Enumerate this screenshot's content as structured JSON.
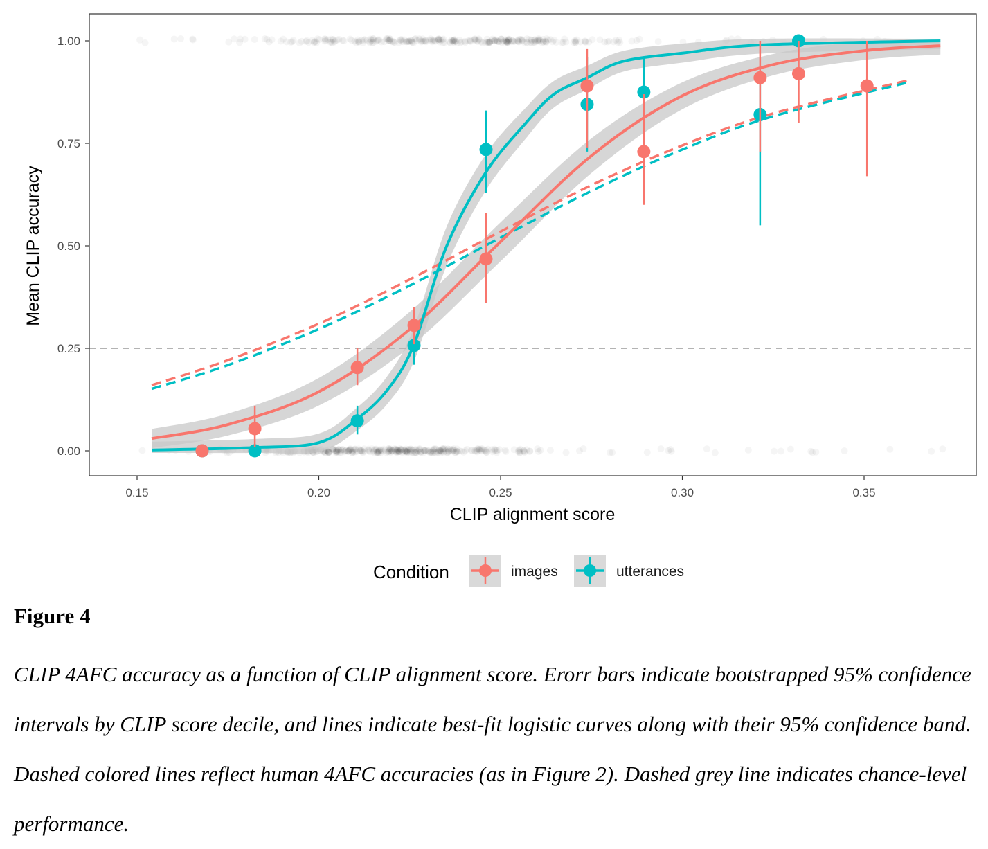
{
  "chart_data": {
    "type": "scatter",
    "xlabel": "CLIP alignment score",
    "ylabel": "Mean CLIP accuracy",
    "xlim": [
      0.137,
      0.381
    ],
    "ylim": [
      -0.06,
      1.07
    ],
    "xticks": [
      "0.15",
      "0.20",
      "0.25",
      "0.30",
      "0.35"
    ],
    "xtick_values": [
      0.15,
      0.2,
      0.25,
      0.3,
      0.35
    ],
    "yticks": [
      "0.00",
      "0.25",
      "0.50",
      "0.75",
      "1.00"
    ],
    "ytick_values": [
      0,
      0.25,
      0.5,
      0.75,
      1.0
    ],
    "grid": false,
    "legend": {
      "title": "Condition",
      "placement": "bottom"
    },
    "chance_line": {
      "y": 0.25,
      "color": "#b3b3b3",
      "style": "dashed"
    },
    "series": [
      {
        "name": "images",
        "color": "#F8766D",
        "points": [
          {
            "x": 0.1679,
            "y": 0.0,
            "lo": 0.0,
            "hi": 0.0
          },
          {
            "x": 0.1824,
            "y": 0.054,
            "lo": 0.01,
            "hi": 0.11
          },
          {
            "x": 0.2106,
            "y": 0.203,
            "lo": 0.16,
            "hi": 0.25
          },
          {
            "x": 0.2262,
            "y": 0.306,
            "lo": 0.26,
            "hi": 0.35
          },
          {
            "x": 0.246,
            "y": 0.468,
            "lo": 0.36,
            "hi": 0.58
          },
          {
            "x": 0.2738,
            "y": 0.89,
            "lo": 0.74,
            "hi": 0.98
          },
          {
            "x": 0.2894,
            "y": 0.73,
            "lo": 0.6,
            "hi": 0.87
          },
          {
            "x": 0.3214,
            "y": 0.91,
            "lo": 0.73,
            "hi": 1.0
          },
          {
            "x": 0.332,
            "y": 0.92,
            "lo": 0.8,
            "hi": 1.0
          },
          {
            "x": 0.3508,
            "y": 0.89,
            "lo": 0.67,
            "hi": 1.0
          }
        ],
        "fit_curve": {
          "x": [
            0.154,
            0.175,
            0.2,
            0.225,
            0.25,
            0.275,
            0.3,
            0.325,
            0.35,
            0.371
          ],
          "y": [
            0.03,
            0.064,
            0.144,
            0.296,
            0.51,
            0.72,
            0.866,
            0.942,
            0.976,
            0.988
          ]
        },
        "human_curve": {
          "x": [
            0.154,
            0.175,
            0.2,
            0.225,
            0.25,
            0.275,
            0.3,
            0.325,
            0.3628
          ],
          "y": [
            0.16,
            0.221,
            0.31,
            0.418,
            0.535,
            0.648,
            0.745,
            0.823,
            0.905
          ]
        }
      },
      {
        "name": "utterances",
        "color": "#00BFC4",
        "points": [
          {
            "x": 0.1679,
            "y": 0.0,
            "lo": 0.0,
            "hi": 0.0
          },
          {
            "x": 0.1824,
            "y": 0.0,
            "lo": 0.0,
            "hi": 0.0
          },
          {
            "x": 0.2106,
            "y": 0.073,
            "lo": 0.04,
            "hi": 0.11
          },
          {
            "x": 0.2262,
            "y": 0.257,
            "lo": 0.21,
            "hi": 0.3
          },
          {
            "x": 0.246,
            "y": 0.735,
            "lo": 0.63,
            "hi": 0.83
          },
          {
            "x": 0.2738,
            "y": 0.845,
            "lo": 0.73,
            "hi": 0.96
          },
          {
            "x": 0.2894,
            "y": 0.875,
            "lo": 0.78,
            "hi": 0.96
          },
          {
            "x": 0.3214,
            "y": 0.82,
            "lo": 0.55,
            "hi": 0.9
          },
          {
            "x": 0.332,
            "y": 1.0,
            "lo": 1.0,
            "hi": 1.0
          }
        ],
        "fit_curve": {
          "x": [
            0.154,
            0.1824,
            0.2,
            0.2106,
            0.219,
            0.2262,
            0.2352,
            0.246,
            0.257,
            0.2647,
            0.2738,
            0.2837,
            0.3,
            0.322,
            0.371
          ],
          "y": [
            0.002,
            0.008,
            0.02,
            0.078,
            0.15,
            0.26,
            0.5,
            0.68,
            0.8,
            0.87,
            0.91,
            0.95,
            0.97,
            0.99,
            1.0
          ]
        },
        "human_curve": {
          "x": [
            0.154,
            0.175,
            0.2,
            0.225,
            0.25,
            0.275,
            0.3,
            0.325,
            0.3628
          ],
          "y": [
            0.151,
            0.209,
            0.297,
            0.403,
            0.52,
            0.634,
            0.735,
            0.816,
            0.9
          ]
        }
      }
    ]
  },
  "figure": {
    "label": "Figure 4",
    "caption": "CLIP 4AFC accuracy as a function of CLIP alignment score. Erorr bars indicate bootstrapped 95% confidence intervals by CLIP score decile, and lines indicate best-fit logistic curves along with their 95% confidence band. Dashed colored lines reflect human 4AFC accuracies (as in Figure 2). Dashed grey line indicates chance-level performance."
  }
}
